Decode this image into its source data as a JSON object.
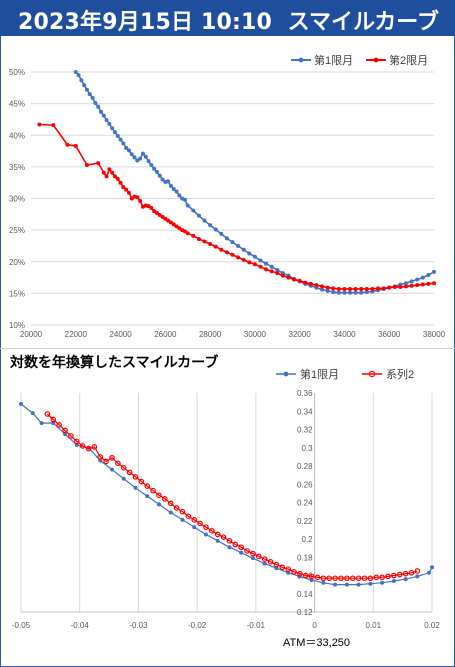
{
  "header": {
    "date": "2023年9月15日 10:10",
    "title": "スマイルカーブ"
  },
  "colors": {
    "header_bg": "#1f4e9c",
    "series_blue": "#4472c4",
    "series_red": "#ff0000"
  },
  "atm_label": "ATM＝33,250",
  "chart_data": [
    {
      "type": "line",
      "title": "",
      "xlim": [
        20000,
        38000
      ],
      "ylim": [
        0.1,
        0.5
      ],
      "x_ticks": [
        "20000",
        "22000",
        "24000",
        "26000",
        "28000",
        "30000",
        "32000",
        "34000",
        "36000",
        "38000"
      ],
      "y_ticks": [
        "10%",
        "15%",
        "20%",
        "25%",
        "30%",
        "35%",
        "40%",
        "45%",
        "50%"
      ],
      "grid": "horizontal",
      "legend": "top-right",
      "series": [
        {
          "name": "第1限月",
          "color": "#4472c4",
          "x": [
            22000,
            22125,
            22250,
            22375,
            22500,
            22625,
            22750,
            22875,
            23000,
            23125,
            23250,
            23375,
            23500,
            23625,
            23750,
            23875,
            24000,
            24125,
            24250,
            24375,
            24500,
            24625,
            24750,
            24875,
            25000,
            25125,
            25250,
            25375,
            25500,
            25625,
            25750,
            25875,
            26000,
            26125,
            26250,
            26375,
            26500,
            26625,
            26750,
            26875,
            27000,
            27250,
            27500,
            27750,
            28000,
            28250,
            28500,
            28750,
            29000,
            29250,
            29500,
            29750,
            30000,
            30250,
            30500,
            30750,
            31000,
            31250,
            31500,
            31750,
            32000,
            32250,
            32500,
            32750,
            33000,
            33250,
            33500,
            33750,
            34000,
            34250,
            34500,
            34750,
            35000,
            35250,
            35500,
            35750,
            36000,
            36250,
            36500,
            36750,
            37000,
            37250,
            37500,
            37750,
            38000
          ],
          "y": [
            0.5,
            0.495,
            0.487,
            0.479,
            0.472,
            0.465,
            0.459,
            0.451,
            0.445,
            0.437,
            0.431,
            0.424,
            0.418,
            0.411,
            0.405,
            0.399,
            0.393,
            0.387,
            0.38,
            0.376,
            0.37,
            0.365,
            0.36,
            0.363,
            0.371,
            0.366,
            0.359,
            0.353,
            0.347,
            0.342,
            0.336,
            0.33,
            0.326,
            0.327,
            0.32,
            0.315,
            0.311,
            0.305,
            0.3,
            0.298,
            0.289,
            0.281,
            0.273,
            0.265,
            0.258,
            0.251,
            0.244,
            0.237,
            0.231,
            0.225,
            0.219,
            0.213,
            0.208,
            0.202,
            0.197,
            0.192,
            0.187,
            0.182,
            0.178,
            0.173,
            0.169,
            0.165,
            0.162,
            0.159,
            0.156,
            0.154,
            0.152,
            0.151,
            0.151,
            0.151,
            0.151,
            0.151,
            0.152,
            0.153,
            0.155,
            0.157,
            0.159,
            0.161,
            0.164,
            0.166,
            0.169,
            0.172,
            0.175,
            0.179,
            0.184
          ]
        },
        {
          "name": "第2限月",
          "color": "#ff0000",
          "x": [
            20375,
            21000,
            21625,
            22000,
            22500,
            23000,
            23250,
            23375,
            23500,
            23625,
            23750,
            23875,
            24000,
            24125,
            24250,
            24375,
            24500,
            24625,
            24750,
            24875,
            25000,
            25125,
            25250,
            25375,
            25500,
            25625,
            25750,
            25875,
            26000,
            26125,
            26250,
            26375,
            26500,
            26625,
            26750,
            26875,
            27000,
            27250,
            27500,
            27750,
            28000,
            28250,
            28500,
            28750,
            29000,
            29250,
            29500,
            29750,
            30000,
            30250,
            30500,
            30750,
            31000,
            31250,
            31500,
            31750,
            32000,
            32250,
            32500,
            32750,
            33000,
            33250,
            33500,
            33750,
            34000,
            34250,
            34500,
            34750,
            35000,
            35250,
            35500,
            35750,
            36000,
            36250,
            36500,
            36750,
            37000,
            37250,
            37500,
            37750,
            38000
          ],
          "y": [
            0.417,
            0.416,
            0.385,
            0.383,
            0.353,
            0.356,
            0.341,
            0.335,
            0.346,
            0.341,
            0.335,
            0.331,
            0.325,
            0.318,
            0.314,
            0.309,
            0.3,
            0.303,
            0.302,
            0.296,
            0.287,
            0.289,
            0.288,
            0.285,
            0.28,
            0.277,
            0.274,
            0.271,
            0.268,
            0.265,
            0.262,
            0.259,
            0.256,
            0.253,
            0.25,
            0.248,
            0.245,
            0.241,
            0.236,
            0.232,
            0.228,
            0.224,
            0.219,
            0.215,
            0.211,
            0.207,
            0.203,
            0.199,
            0.196,
            0.192,
            0.188,
            0.185,
            0.182,
            0.178,
            0.175,
            0.172,
            0.17,
            0.167,
            0.165,
            0.163,
            0.161,
            0.159,
            0.158,
            0.157,
            0.157,
            0.157,
            0.157,
            0.157,
            0.157,
            0.157,
            0.158,
            0.158,
            0.159,
            0.16,
            0.16,
            0.161,
            0.162,
            0.163,
            0.164,
            0.165,
            0.166
          ]
        }
      ]
    },
    {
      "type": "line",
      "title": "対数を年換算したスマイルカーブ",
      "xlim": [
        -0.05,
        0.02
      ],
      "ylim": [
        0.12,
        0.36
      ],
      "x_ticks": [
        "-0.05",
        "-0.04",
        "-0.03",
        "-0.02",
        "-0.01",
        "0",
        "0.01",
        "0.02"
      ],
      "y_ticks": [
        "0.12",
        "0.14",
        "0.16",
        "0.18",
        "0.2",
        "0.22",
        "0.24",
        "0.26",
        "0.28",
        "0.3",
        "0.32",
        "0.34",
        "0.36"
      ],
      "grid": "vertical",
      "legend": "top-right",
      "series": [
        {
          "name": "第1限月",
          "color": "#4472c4",
          "x": [
            -0.05,
            -0.048,
            -0.0465,
            -0.0445,
            -0.0425,
            -0.0405,
            -0.0385,
            -0.0365,
            -0.0345,
            -0.0325,
            -0.0305,
            -0.0285,
            -0.0265,
            -0.0245,
            -0.0225,
            -0.0205,
            -0.0185,
            -0.0165,
            -0.0145,
            -0.0125,
            -0.0105,
            -0.0085,
            -0.0065,
            -0.0045,
            -0.0025,
            -0.0005,
            0.0015,
            0.0035,
            0.0055,
            0.0075,
            0.0095,
            0.0115,
            0.0135,
            0.0155,
            0.0175,
            0.0195,
            0.02
          ],
          "y": [
            0.348,
            0.338,
            0.327,
            0.327,
            0.315,
            0.303,
            0.3,
            0.286,
            0.276,
            0.266,
            0.256,
            0.247,
            0.238,
            0.229,
            0.221,
            0.213,
            0.205,
            0.198,
            0.191,
            0.185,
            0.179,
            0.173,
            0.168,
            0.163,
            0.159,
            0.155,
            0.152,
            0.15,
            0.15,
            0.15,
            0.151,
            0.152,
            0.154,
            0.156,
            0.159,
            0.163,
            0.169
          ]
        },
        {
          "name": "系列2",
          "color": "#ff0000",
          "x": [
            -0.0455,
            -0.0445,
            -0.0435,
            -0.0425,
            -0.0415,
            -0.0405,
            -0.0395,
            -0.0385,
            -0.0375,
            -0.0365,
            -0.0355,
            -0.0345,
            -0.0335,
            -0.0325,
            -0.0315,
            -0.0305,
            -0.0295,
            -0.0285,
            -0.0275,
            -0.0265,
            -0.0255,
            -0.0245,
            -0.0235,
            -0.0225,
            -0.0215,
            -0.0205,
            -0.0195,
            -0.0185,
            -0.0175,
            -0.0165,
            -0.0155,
            -0.0145,
            -0.0135,
            -0.0125,
            -0.0115,
            -0.0105,
            -0.0095,
            -0.0085,
            -0.0075,
            -0.0065,
            -0.0055,
            -0.0045,
            -0.0035,
            -0.0025,
            -0.0015,
            -0.0005,
            0.0005,
            0.0015,
            0.0025,
            0.0035,
            0.0045,
            0.0055,
            0.0065,
            0.0075,
            0.0085,
            0.0095,
            0.0105,
            0.0115,
            0.0125,
            0.0135,
            0.0145,
            0.0155,
            0.0165,
            0.0175
          ],
          "y": [
            0.337,
            0.331,
            0.325,
            0.319,
            0.313,
            0.307,
            0.302,
            0.299,
            0.301,
            0.29,
            0.285,
            0.289,
            0.283,
            0.278,
            0.273,
            0.268,
            0.263,
            0.258,
            0.253,
            0.248,
            0.244,
            0.239,
            0.234,
            0.23,
            0.225,
            0.221,
            0.217,
            0.213,
            0.209,
            0.205,
            0.202,
            0.198,
            0.194,
            0.191,
            0.187,
            0.184,
            0.181,
            0.178,
            0.175,
            0.172,
            0.169,
            0.167,
            0.164,
            0.162,
            0.16,
            0.159,
            0.158,
            0.157,
            0.157,
            0.157,
            0.157,
            0.157,
            0.157,
            0.157,
            0.157,
            0.157,
            0.158,
            0.158,
            0.159,
            0.16,
            0.161,
            0.162,
            0.163,
            0.165
          ]
        }
      ]
    }
  ]
}
